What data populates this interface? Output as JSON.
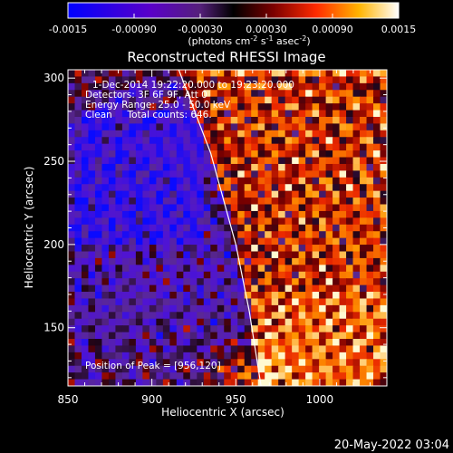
{
  "chart_data": {
    "type": "heatmap",
    "title": "Reconstructed RHESSI Image",
    "xlabel": "Heliocentric X (arcsec)",
    "ylabel": "Heliocentric Y (arcsec)",
    "xlim": [
      850,
      1040
    ],
    "ylim": [
      115,
      305
    ],
    "x_ticks": [
      850,
      900,
      950,
      1000
    ],
    "y_ticks": [
      150,
      200,
      250,
      300
    ],
    "colorbar": {
      "range": [
        -0.0015,
        0.0015
      ],
      "ticks": [
        "-0.0015",
        "-0.00090",
        "-0.00030",
        "0.00030",
        "0.00090",
        "0.0015"
      ],
      "units_text": "(photons cm",
      "units_exp1": "-2",
      "units_mid1": " s",
      "units_exp2": "-1",
      "units_mid2": " asec",
      "units_exp3": "-2",
      "units_end": ")"
    },
    "info_lines": [
      "1-Dec-2014 19:22:20.000 to 19:23:20.000",
      "Detectors: 3F 6F 9F, Att 0",
      "Energy Range: 25.0 - 50.0 keV",
      "Clean     Total counts: 646."
    ],
    "peak_label": "Position of Peak = [956,120]",
    "peak": [
      956,
      120
    ],
    "limb": [
      [
        916,
        305
      ],
      [
        935,
        255
      ],
      [
        950,
        200
      ],
      [
        958,
        160
      ],
      [
        965,
        115
      ]
    ],
    "colors": {
      "background": "#000000",
      "text": "#ffffff",
      "limb": "#ffffff"
    }
  },
  "footer": {
    "timestamp": "20-May-2022 03:04"
  }
}
